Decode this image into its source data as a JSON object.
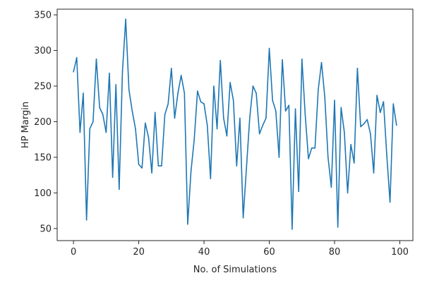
{
  "chart_data": {
    "type": "line",
    "title": "",
    "xlabel": "No. of Simulations",
    "ylabel": "HP Margin",
    "xlim": [
      -5,
      104
    ],
    "ylim": [
      33,
      358
    ],
    "xticks": [
      0,
      20,
      40,
      60,
      80,
      100
    ],
    "yticks": [
      50,
      100,
      150,
      200,
      250,
      300,
      350
    ],
    "grid": false,
    "color": "#1f77b4",
    "series": [
      {
        "x": [
          0,
          1,
          2,
          3,
          4,
          5,
          6,
          7,
          8,
          9,
          10,
          11,
          12,
          13,
          14,
          15,
          16,
          17,
          18,
          19,
          20,
          21,
          22,
          23,
          24,
          25,
          26,
          27,
          28,
          29,
          30,
          31,
          32,
          33,
          34,
          35,
          36,
          37,
          38,
          39,
          40,
          41,
          42,
          43,
          44,
          45,
          46,
          47,
          48,
          49,
          50,
          51,
          52,
          53,
          54,
          55,
          56,
          57,
          58,
          59,
          60,
          61,
          62,
          63,
          64,
          65,
          66,
          67,
          68,
          69,
          70,
          71,
          72,
          73,
          74,
          75,
          76,
          77,
          78,
          79,
          80,
          81,
          82,
          83,
          84,
          85,
          86,
          87,
          88,
          89,
          90,
          91,
          92,
          93,
          94,
          95,
          96,
          97,
          98,
          99
        ],
        "values": [
          270,
          290,
          185,
          240,
          62,
          190,
          200,
          288,
          220,
          210,
          185,
          268,
          122,
          252,
          105,
          270,
          344,
          245,
          215,
          190,
          140,
          135,
          198,
          178,
          128,
          213,
          138,
          138,
          210,
          225,
          275,
          205,
          240,
          265,
          240,
          56,
          130,
          175,
          243,
          228,
          225,
          195,
          120,
          250,
          190,
          286,
          205,
          180,
          255,
          230,
          138,
          205,
          65,
          135,
          205,
          250,
          240,
          183,
          195,
          205,
          303,
          230,
          215,
          150,
          287,
          215,
          223,
          49,
          218,
          102,
          288,
          210,
          148,
          163,
          163,
          245,
          283,
          235,
          150,
          108,
          230,
          52,
          220,
          185,
          100,
          168,
          142,
          275,
          193,
          197,
          203,
          183,
          128,
          237,
          213,
          228,
          153,
          87,
          225,
          195
        ]
      }
    ]
  }
}
